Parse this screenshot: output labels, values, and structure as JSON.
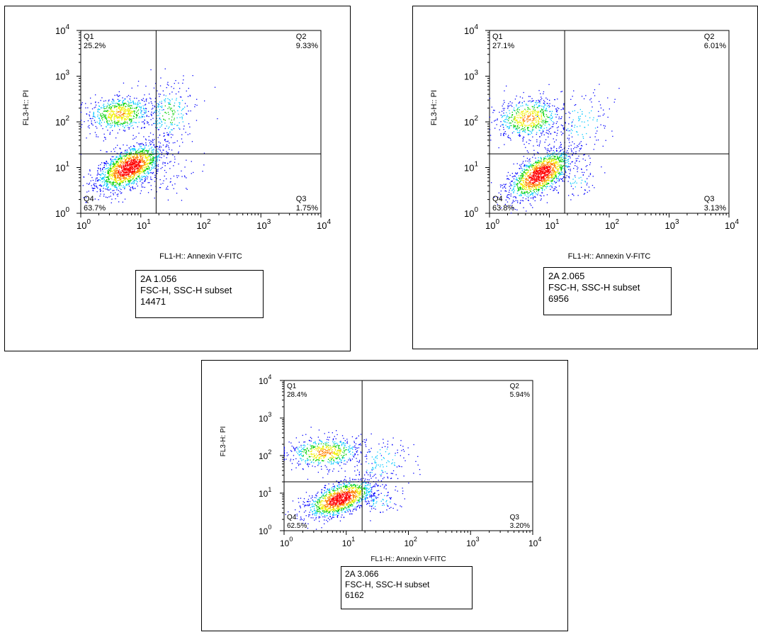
{
  "chart_data": [
    {
      "type": "scatter",
      "subtype": "flow-cytometry-density-dot-plot",
      "xlabel": "FL1-H:: Annexin V-FITC",
      "ylabel": "FL3-H:: PI",
      "x_scale": "log",
      "y_scale": "log",
      "xlim": [
        1,
        10000
      ],
      "ylim": [
        1,
        10000
      ],
      "x_ticks": [
        1,
        10,
        100,
        1000,
        10000
      ],
      "y_ticks": [
        1,
        10,
        100,
        1000,
        10000
      ],
      "quadrant_gate": {
        "x": 18,
        "y": 20
      },
      "quadrants": [
        {
          "name": "Q1",
          "percent": "25.2%"
        },
        {
          "name": "Q2",
          "percent": "9.33%"
        },
        {
          "name": "Q3",
          "percent": "1.75%"
        },
        {
          "name": "Q4",
          "percent": "63.7%"
        }
      ],
      "sample": {
        "name": "2A 1.056",
        "gate": "FSC-H, SSC-H subset",
        "count": "14471"
      },
      "populations": [
        {
          "x": 6.5,
          "y": 10,
          "sx": 0.27,
          "sy": 0.26,
          "rho": 0.55,
          "weight": 0.63
        },
        {
          "x": 4.5,
          "y": 150,
          "sx": 0.28,
          "sy": 0.2,
          "rho": 0.1,
          "weight": 0.25
        },
        {
          "x": 30,
          "y": 150,
          "sx": 0.22,
          "sy": 0.35,
          "rho": 0.1,
          "weight": 0.09
        },
        {
          "x": 35,
          "y": 6,
          "sx": 0.2,
          "sy": 0.2,
          "rho": 0.2,
          "weight": 0.02
        }
      ],
      "density_colors": [
        "#0000ff",
        "#00c8ff",
        "#00d000",
        "#f0f000",
        "#ff8000",
        "#ff0000"
      ]
    },
    {
      "type": "scatter",
      "subtype": "flow-cytometry-density-dot-plot",
      "xlabel": "FL1-H:: Annexin V-FITC",
      "ylabel": "FL3-H:: PI",
      "x_scale": "log",
      "y_scale": "log",
      "xlim": [
        1,
        10000
      ],
      "ylim": [
        1,
        10000
      ],
      "x_ticks": [
        1,
        10,
        100,
        1000,
        10000
      ],
      "y_ticks": [
        1,
        10,
        100,
        1000,
        10000
      ],
      "quadrant_gate": {
        "x": 18,
        "y": 20
      },
      "quadrants": [
        {
          "name": "Q1",
          "percent": "27.1%"
        },
        {
          "name": "Q2",
          "percent": "6.01%"
        },
        {
          "name": "Q3",
          "percent": "3.13%"
        },
        {
          "name": "Q4",
          "percent": "63.8%"
        }
      ],
      "sample": {
        "name": "2A 2.065",
        "gate": "FSC-H, SSC-H subset",
        "count": "6956"
      },
      "populations": [
        {
          "x": 7,
          "y": 7,
          "sx": 0.26,
          "sy": 0.27,
          "rho": 0.6,
          "weight": 0.64
        },
        {
          "x": 4.5,
          "y": 120,
          "sx": 0.28,
          "sy": 0.22,
          "rho": 0.1,
          "weight": 0.27
        },
        {
          "x": 35,
          "y": 100,
          "sx": 0.25,
          "sy": 0.35,
          "rho": 0.1,
          "weight": 0.06
        },
        {
          "x": 30,
          "y": 5,
          "sx": 0.2,
          "sy": 0.2,
          "rho": 0.2,
          "weight": 0.03
        }
      ],
      "density_colors": [
        "#0000ff",
        "#00c8ff",
        "#00d000",
        "#f0f000",
        "#ff8000",
        "#ff0000"
      ]
    },
    {
      "type": "scatter",
      "subtype": "flow-cytometry-density-dot-plot",
      "xlabel": "FL1-H:: Annexin V-FITC",
      "ylabel": "FL3-H: PI",
      "x_scale": "log",
      "y_scale": "log",
      "xlim": [
        1,
        10000
      ],
      "ylim": [
        1,
        10000
      ],
      "x_ticks": [
        1,
        10,
        100,
        1000,
        10000
      ],
      "y_ticks": [
        1,
        10,
        100,
        1000,
        10000
      ],
      "quadrant_gate": {
        "x": 18,
        "y": 20
      },
      "quadrants": [
        {
          "name": "Q1",
          "percent": "28.4%"
        },
        {
          "name": "Q2",
          "percent": "5.94%"
        },
        {
          "name": "Q3",
          "percent": "3.20%"
        },
        {
          "name": "Q4",
          "percent": "62.5%"
        }
      ],
      "sample": {
        "name": "2A 3.066",
        "gate": "FSC-H, SSC-H subset",
        "count": "6162"
      },
      "populations": [
        {
          "x": 8,
          "y": 7,
          "sx": 0.27,
          "sy": 0.25,
          "rho": 0.55,
          "weight": 0.62
        },
        {
          "x": 4.5,
          "y": 120,
          "sx": 0.3,
          "sy": 0.2,
          "rho": 0.1,
          "weight": 0.28
        },
        {
          "x": 35,
          "y": 70,
          "sx": 0.25,
          "sy": 0.35,
          "rho": 0.1,
          "weight": 0.06
        },
        {
          "x": 35,
          "y": 6,
          "sx": 0.2,
          "sy": 0.2,
          "rho": 0.2,
          "weight": 0.04
        }
      ],
      "density_colors": [
        "#0000ff",
        "#00c8ff",
        "#00d000",
        "#f0f000",
        "#ff8000",
        "#ff0000"
      ]
    }
  ]
}
